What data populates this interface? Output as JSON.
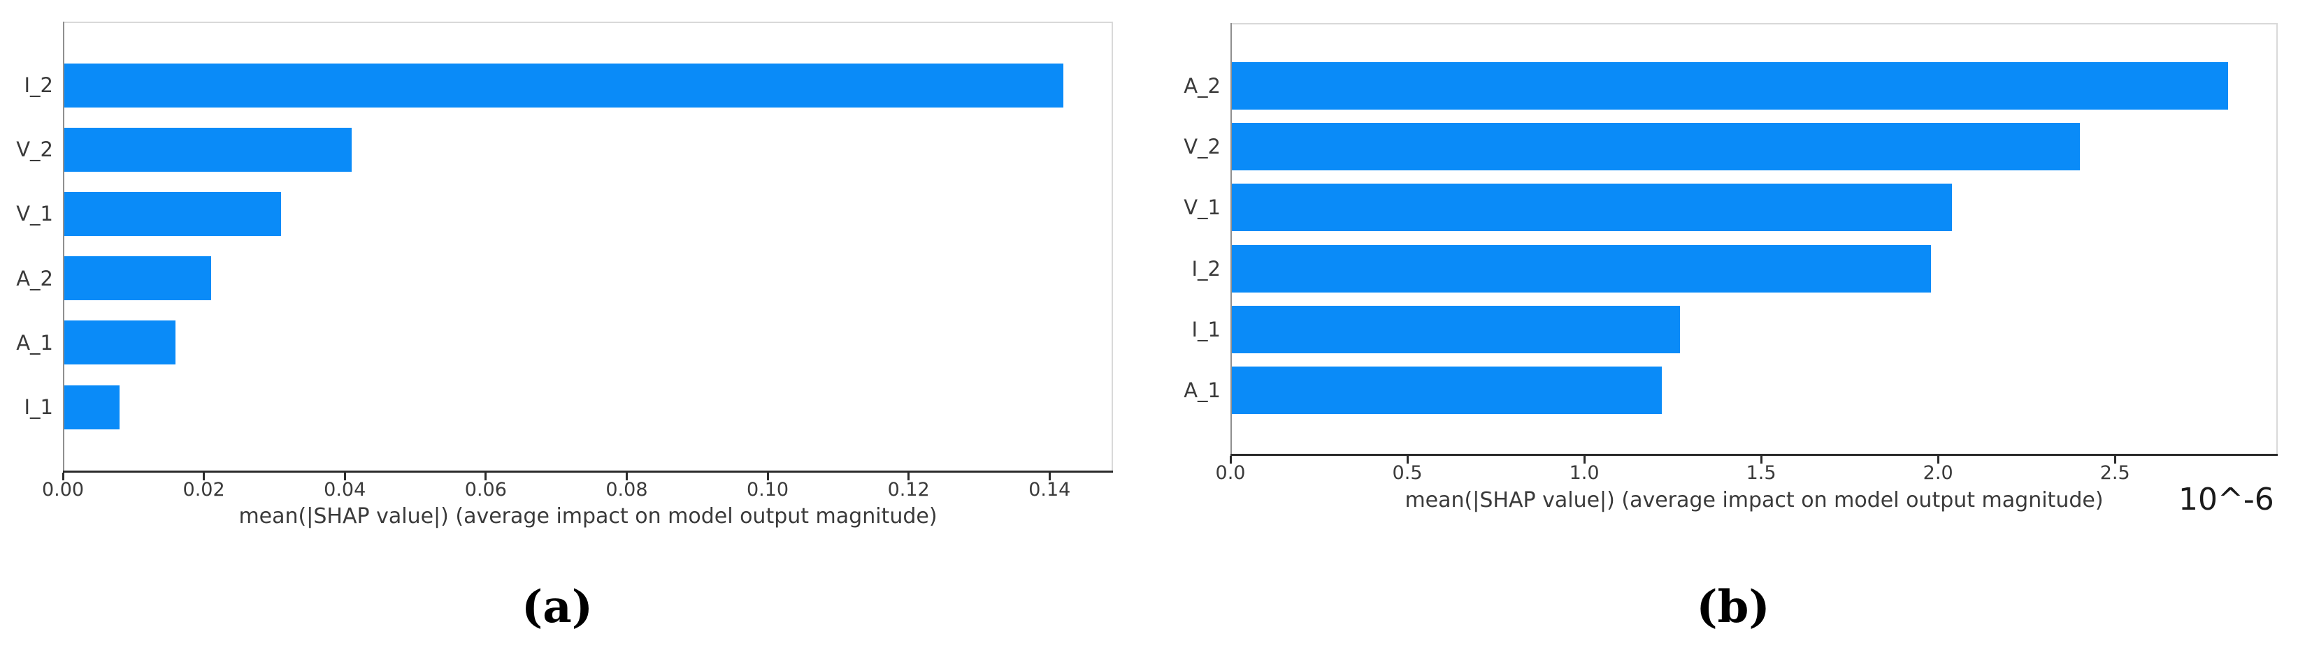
{
  "figure": {
    "background_color": "#ffffff",
    "bar_color": "#0a8bf8",
    "captions": {
      "a": "(a)",
      "b": "(b)"
    }
  },
  "chart_data": [
    {
      "id": "a",
      "type": "bar",
      "orientation": "horizontal",
      "caption": "(a)",
      "title": "",
      "categories": [
        "I_2",
        "V_2",
        "V_1",
        "A_2",
        "A_1",
        "I_1"
      ],
      "values": [
        0.142,
        0.041,
        0.031,
        0.021,
        0.016,
        0.008
      ],
      "xlabel": "mean(|SHAP value|) (average impact on model output magnitude)",
      "ylabel": "",
      "xlim": [
        0,
        0.149
      ],
      "xticks": [
        {
          "value": 0.0,
          "label": "0.00"
        },
        {
          "value": 0.02,
          "label": "0.02"
        },
        {
          "value": 0.04,
          "label": "0.04"
        },
        {
          "value": 0.06,
          "label": "0.06"
        },
        {
          "value": 0.08,
          "label": "0.08"
        },
        {
          "value": 0.1,
          "label": "0.10"
        },
        {
          "value": 0.12,
          "label": "0.12"
        },
        {
          "value": 0.14,
          "label": "0.14"
        }
      ],
      "grid": false,
      "legend": "none"
    },
    {
      "id": "b",
      "type": "bar",
      "orientation": "horizontal",
      "caption": "(b)",
      "title": "",
      "categories": [
        "A_2",
        "V_2",
        "V_1",
        "I_2",
        "I_1",
        "A_1"
      ],
      "values": [
        2.82,
        2.4,
        2.04,
        1.98,
        1.27,
        1.22
      ],
      "value_scale_note": "10^-6",
      "xlabel": "mean(|SHAP value|) (average impact on model output magnitude)",
      "ylabel": "",
      "xlim": [
        0,
        2.96
      ],
      "xticks": [
        {
          "value": 0.0,
          "label": "0.0"
        },
        {
          "value": 0.5,
          "label": "0.5"
        },
        {
          "value": 1.0,
          "label": "1.0"
        },
        {
          "value": 1.5,
          "label": "1.5"
        },
        {
          "value": 2.0,
          "label": "2.0"
        },
        {
          "value": 2.5,
          "label": "2.5"
        }
      ],
      "grid": false,
      "legend": "none"
    }
  ]
}
